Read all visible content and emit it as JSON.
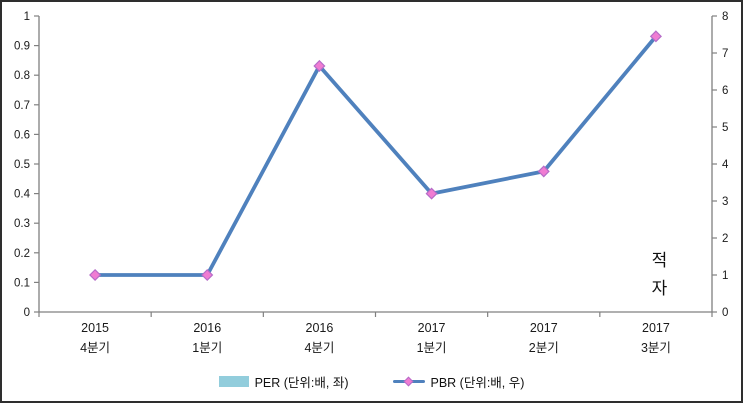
{
  "window": {
    "background": "#ffffff",
    "border_color": "#2e2e2e"
  },
  "chart_data": {
    "type": "line",
    "title": "",
    "categories": [
      {
        "line1": "2015",
        "line2": "4분기"
      },
      {
        "line1": "2016",
        "line2": "1분기"
      },
      {
        "line1": "2016",
        "line2": "4분기"
      },
      {
        "line1": "2017",
        "line2": "1분기"
      },
      {
        "line1": "2017",
        "line2": "2분기"
      },
      {
        "line1": "2017",
        "line2": "3분기"
      }
    ],
    "left_axis": {
      "min": 0,
      "max": 1,
      "step": 0.1,
      "ticks": [
        "1",
        "0.9",
        "0.8",
        "0.7",
        "0.6",
        "0.5",
        "0.4",
        "0.3",
        "0.2",
        "0.1",
        "0"
      ]
    },
    "right_axis": {
      "min": 0,
      "max": 8,
      "step": 1,
      "ticks": [
        "8",
        "7",
        "6",
        "5",
        "4",
        "3",
        "2",
        "1",
        "0"
      ]
    },
    "axis_color": "#808080",
    "grid": "off",
    "series": [
      {
        "name": "PER (단위:배, 좌)",
        "type": "bar",
        "axis": "left",
        "color": "#92CDDC",
        "values": [
          null,
          null,
          null,
          null,
          null,
          null
        ]
      },
      {
        "name": "PBR (단위:배, 우)",
        "type": "line",
        "axis": "right",
        "color": "#4F81BD",
        "marker": "diamond",
        "marker_color": "#F07CD2",
        "marker_border": "#B56CC8",
        "values": [
          1.0,
          1.0,
          6.65,
          3.2,
          3.8,
          7.45
        ]
      }
    ],
    "annotation": {
      "text": "적자",
      "chars": [
        "적",
        "자"
      ],
      "category_index": 5
    },
    "legend": {
      "position": "bottom",
      "items": [
        {
          "swatch": "bar",
          "color": "#92CDDC",
          "label": "PER (단위:배, 좌)"
        },
        {
          "swatch": "line-marker",
          "line_color": "#4F81BD",
          "marker_color": "#F07CD2",
          "label": "PBR (단위:배, 우)"
        }
      ]
    }
  }
}
